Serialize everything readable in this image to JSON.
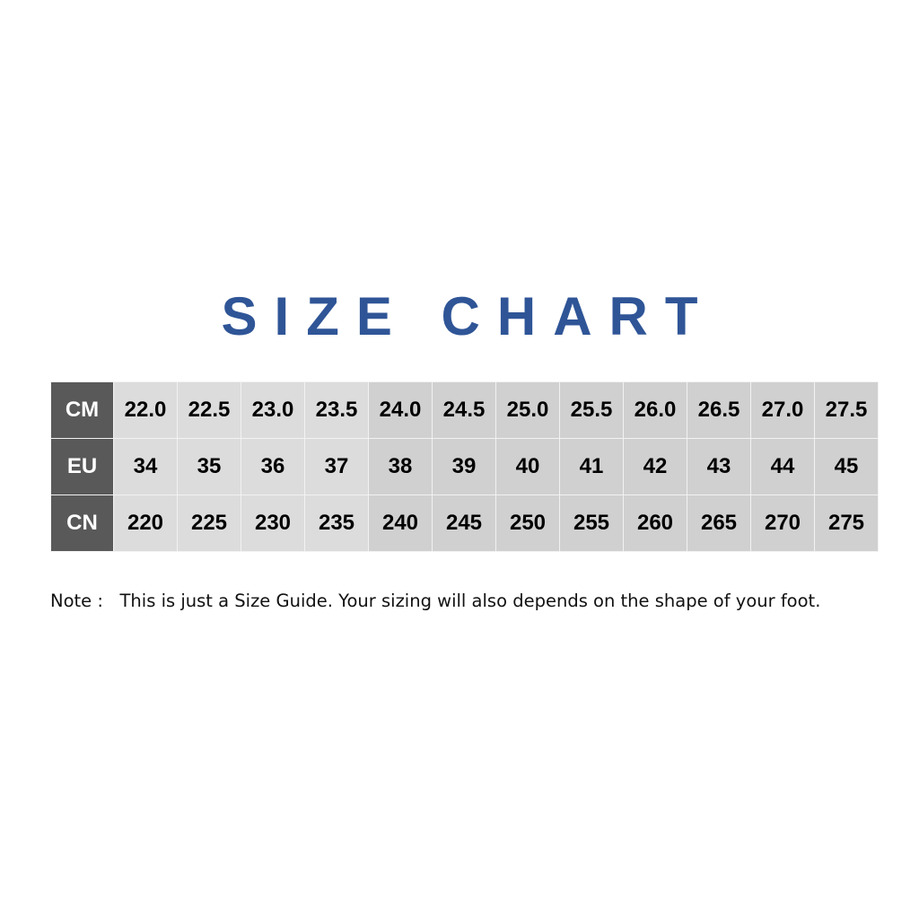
{
  "title": "SIZE CHART",
  "colors": {
    "title": "#2f5597",
    "header_bg": "#595959",
    "cell_light": "#dcdcdc",
    "cell_dark": "#d0d0d0"
  },
  "table": {
    "rows": [
      {
        "label": "CM",
        "values": [
          "22.0",
          "22.5",
          "23.0",
          "23.5",
          "24.0",
          "24.5",
          "25.0",
          "25.5",
          "26.0",
          "26.5",
          "27.0",
          "27.5"
        ]
      },
      {
        "label": "EU",
        "values": [
          "34",
          "35",
          "36",
          "37",
          "38",
          "39",
          "40",
          "41",
          "42",
          "43",
          "44",
          "45"
        ]
      },
      {
        "label": "CN",
        "values": [
          "220",
          "225",
          "230",
          "235",
          "240",
          "245",
          "250",
          "255",
          "260",
          "265",
          "270",
          "275"
        ]
      }
    ]
  },
  "note": "Note :   This is just a Size Guide. Your sizing will also depends on the shape of your foot."
}
